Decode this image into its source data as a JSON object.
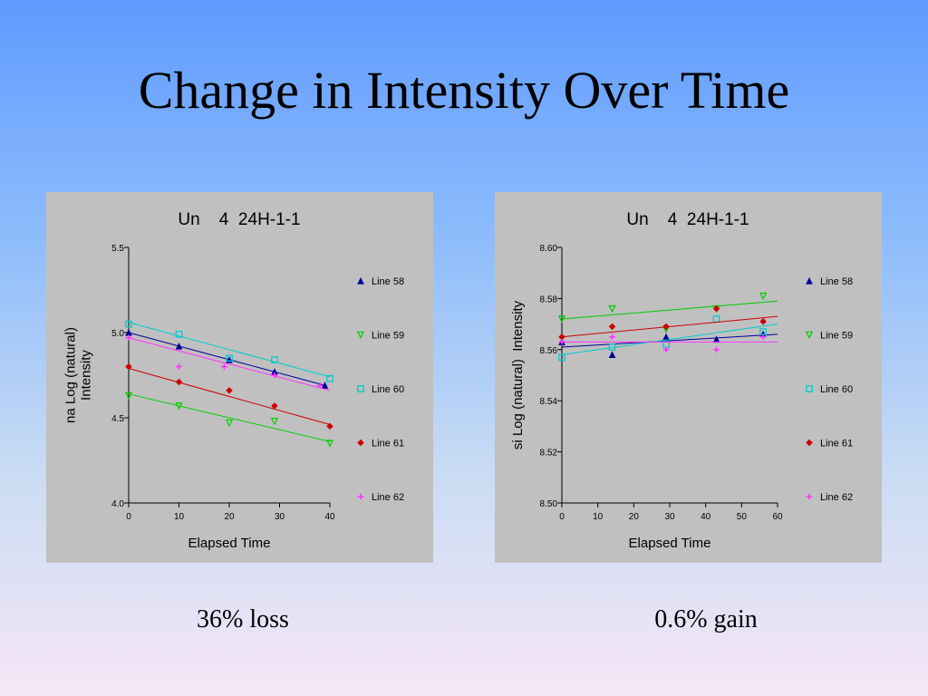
{
  "slide": {
    "title": "Change in Intensity Over Time",
    "captions": [
      "36% loss",
      "0.6% gain"
    ]
  },
  "colors": {
    "panel_bg": "#c0c0c0",
    "series": [
      "#000099",
      "#00cc00",
      "#00cccc",
      "#cc0000",
      "#ff33ff"
    ]
  },
  "chart_data": [
    {
      "type": "scatter",
      "title": "Un    4  24H-1-1",
      "xlabel": "Elapsed Time",
      "ylabel_lines": [
        "na Log (natural)",
        "Intensity"
      ],
      "xlim": [
        0,
        40
      ],
      "ylim": [
        4.0,
        5.5
      ],
      "xticks": [
        0,
        10,
        20,
        30,
        40
      ],
      "yticks": [
        4.0,
        4.5,
        5.0,
        5.5
      ],
      "ytick_labels": [
        "4.0",
        "4.5",
        "5.0",
        "5.5"
      ],
      "grid": false,
      "legend_position": "right",
      "series": [
        {
          "name": "Line 58",
          "marker": "triangle-up",
          "color": "#000099",
          "points": [
            [
              0,
              5.0
            ],
            [
              10,
              4.92
            ],
            [
              20,
              4.84
            ],
            [
              29,
              4.77
            ],
            [
              39,
              4.69
            ]
          ],
          "fit": [
            [
              0,
              5.0
            ],
            [
              39,
              4.69
            ]
          ]
        },
        {
          "name": "Line 59",
          "marker": "triangle-down",
          "color": "#00cc00",
          "points": [
            [
              0,
              4.63
            ],
            [
              10,
              4.57
            ],
            [
              20,
              4.47
            ],
            [
              29,
              4.48
            ],
            [
              40,
              4.35
            ]
          ],
          "fit": [
            [
              0,
              4.64
            ],
            [
              40,
              4.36
            ]
          ]
        },
        {
          "name": "Line 60",
          "marker": "square",
          "color": "#00cccc",
          "points": [
            [
              0,
              5.05
            ],
            [
              10,
              4.99
            ],
            [
              20,
              4.85
            ],
            [
              29,
              4.84
            ],
            [
              40,
              4.73
            ]
          ],
          "fit": [
            [
              0,
              5.06
            ],
            [
              40,
              4.74
            ]
          ]
        },
        {
          "name": "Line 61",
          "marker": "diamond",
          "color": "#cc0000",
          "points": [
            [
              0,
              4.8
            ],
            [
              10,
              4.71
            ],
            [
              20,
              4.66
            ],
            [
              29,
              4.57
            ],
            [
              40,
              4.45
            ]
          ],
          "fit": [
            [
              0,
              4.79
            ],
            [
              40,
              4.46
            ]
          ]
        },
        {
          "name": "Line 62",
          "marker": "plus",
          "color": "#ff33ff",
          "points": [
            [
              0,
              4.97
            ],
            [
              10,
              4.8
            ],
            [
              19,
              4.8
            ],
            [
              29,
              4.75
            ],
            [
              38,
              4.69
            ]
          ],
          "fit": [
            [
              0,
              4.97
            ],
            [
              40,
              4.66
            ]
          ]
        }
      ]
    },
    {
      "type": "scatter",
      "title": "Un    4  24H-1-1",
      "xlabel": "Elapsed Time",
      "ylabel_lines": [
        "si Log (natural)  Intensity"
      ],
      "xlim": [
        0,
        60
      ],
      "ylim": [
        8.5,
        8.6
      ],
      "xticks": [
        0,
        10,
        20,
        30,
        40,
        50,
        60
      ],
      "yticks": [
        8.5,
        8.52,
        8.54,
        8.56,
        8.58,
        8.6
      ],
      "ytick_labels": [
        "8.50",
        "8.52",
        "8.54",
        "8.56",
        "8.58",
        "8.60"
      ],
      "grid": false,
      "legend_position": "right",
      "series": [
        {
          "name": "Line 58",
          "marker": "triangle-up",
          "color": "#000099",
          "points": [
            [
              0,
              8.563
            ],
            [
              14,
              8.558
            ],
            [
              29,
              8.565
            ],
            [
              43,
              8.564
            ],
            [
              56,
              8.566
            ]
          ],
          "fit": [
            [
              0,
              8.561
            ],
            [
              60,
              8.566
            ]
          ]
        },
        {
          "name": "Line 59",
          "marker": "triangle-down",
          "color": "#00cc00",
          "points": [
            [
              0,
              8.572
            ],
            [
              14,
              8.576
            ],
            [
              29,
              8.568
            ],
            [
              43,
              8.576
            ],
            [
              56,
              8.581
            ]
          ],
          "fit": [
            [
              0,
              8.572
            ],
            [
              60,
              8.579
            ]
          ]
        },
        {
          "name": "Line 60",
          "marker": "square",
          "color": "#00cccc",
          "points": [
            [
              0,
              8.557
            ],
            [
              14,
              8.561
            ],
            [
              29,
              8.562
            ],
            [
              43,
              8.572
            ],
            [
              56,
              8.567
            ]
          ],
          "fit": [
            [
              0,
              8.558
            ],
            [
              60,
              8.57
            ]
          ]
        },
        {
          "name": "Line 61",
          "marker": "diamond",
          "color": "#cc0000",
          "points": [
            [
              0,
              8.565
            ],
            [
              14,
              8.569
            ],
            [
              29,
              8.569
            ],
            [
              43,
              8.576
            ],
            [
              56,
              8.571
            ]
          ],
          "fit": [
            [
              0,
              8.565
            ],
            [
              60,
              8.573
            ]
          ]
        },
        {
          "name": "Line 62",
          "marker": "plus",
          "color": "#ff33ff",
          "points": [
            [
              0,
              8.563
            ],
            [
              14,
              8.565
            ],
            [
              29,
              8.56
            ],
            [
              43,
              8.56
            ],
            [
              56,
              8.565
            ]
          ],
          "fit": [
            [
              0,
              8.563
            ],
            [
              60,
              8.563
            ]
          ]
        }
      ]
    }
  ]
}
